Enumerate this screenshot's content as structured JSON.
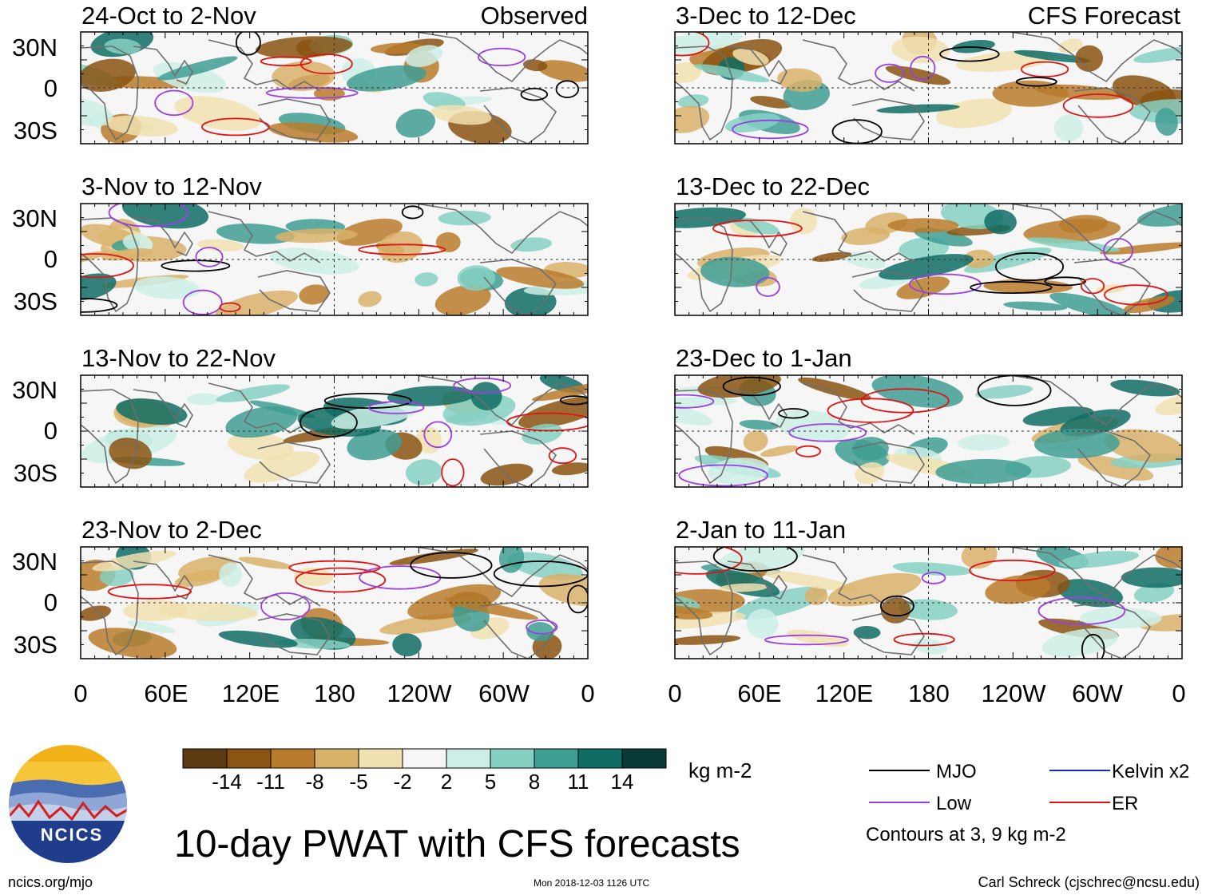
{
  "figure": {
    "title": "10-day PWAT with CFS forecasts",
    "observed_label": "Observed",
    "forecast_label": "CFS Forecast",
    "units": "kg m-2",
    "credit_left": "ncics.org/mjo",
    "timestamp": "Mon 2018-12-03 1126 UTC",
    "credit_right": "Carl Schreck (cjschrec@ncsu.edu)",
    "logo_text": "NCICS",
    "contour_note": "Contours at 3, 9 kg m-2"
  },
  "axes": {
    "y_labels": [
      "30N",
      "0",
      "30S"
    ],
    "x_labels": [
      "0",
      "60E",
      "120E",
      "180",
      "120W",
      "60W",
      "0"
    ]
  },
  "panels": {
    "observed": [
      {
        "period": "24-Oct to 2-Nov"
      },
      {
        "period": "3-Nov to 12-Nov"
      },
      {
        "period": "13-Nov to 22-Nov"
      },
      {
        "period": "23-Nov to 2-Dec"
      }
    ],
    "forecast": [
      {
        "period": "3-Dec to 12-Dec"
      },
      {
        "period": "13-Dec to 22-Dec"
      },
      {
        "period": "23-Dec to 1-Jan"
      },
      {
        "period": "2-Jan to 11-Jan"
      }
    ]
  },
  "colorbar": {
    "ticks": [
      "-14",
      "-11",
      "-8",
      "-5",
      "-2",
      "2",
      "5",
      "8",
      "11",
      "14"
    ],
    "colors": [
      "#5c3a12",
      "#8a5412",
      "#b87b2c",
      "#d9b26a",
      "#f1e0b0",
      "#f6f6f6",
      "#cdeee6",
      "#86d0c2",
      "#3f9e93",
      "#0f6d65",
      "#0b3b36"
    ]
  },
  "legend": {
    "items": [
      {
        "label": "MJO",
        "color": "#000000"
      },
      {
        "label": "Kelvin x2",
        "color": "#1428c8"
      },
      {
        "label": "Low",
        "color": "#9a3ee6"
      },
      {
        "label": "ER",
        "color": "#e01414"
      }
    ]
  }
}
